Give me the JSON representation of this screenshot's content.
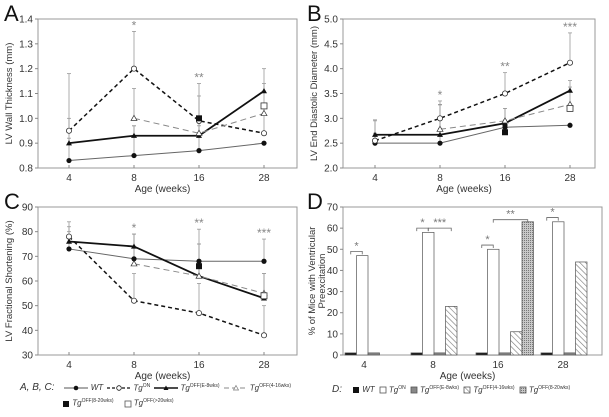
{
  "legend_abc": {
    "prefix": "A, B, C:",
    "items": [
      "WT",
      "Tg",
      "Tg",
      "Tg",
      "Tg",
      "Tg"
    ],
    "sups": [
      "",
      "ON",
      "OFF(E-8wks)",
      "OFF(4-16wks)",
      "OFF(8-20wks)",
      "OFF(>20wks)"
    ]
  },
  "legend_d": {
    "prefix": "D:",
    "items": [
      "WT",
      "Tg",
      "Tg",
      "Tg",
      "Tg"
    ],
    "sups": [
      "",
      "ON",
      "OFF(E-8wks)",
      "OFF(4-16wks)",
      "OFF(8-20wks)"
    ]
  },
  "chart_data": [
    {
      "panel": "A",
      "type": "line",
      "xlabel": "Age (weeks)",
      "ylabel": "LV Wall Thickness (mm)",
      "categories": [
        "4",
        "8",
        "16",
        "28"
      ],
      "ylim": [
        0.8,
        1.4
      ],
      "yticks": [
        "0.8",
        "0.9",
        "1.0",
        "1.1",
        "1.2",
        "1.3",
        "1.4"
      ],
      "series": [
        {
          "name": "WT",
          "values": [
            0.83,
            0.85,
            0.87,
            0.9
          ],
          "err": [
            0.09,
            0.12,
            0.1,
            0
          ]
        },
        {
          "name": "TgON",
          "values": [
            0.95,
            1.2,
            0.99,
            0.94
          ],
          "err": [
            0.23,
            0.15,
            0.15,
            0.1
          ]
        },
        {
          "name": "TgOFF(E-8wks)",
          "values": [
            0.9,
            0.93,
            0.93,
            1.11
          ],
          "err": [
            0.1,
            0.04,
            0.05,
            0.09
          ]
        },
        {
          "name": "TgOFF(4-16wks)",
          "values": [
            null,
            1.0,
            0.94,
            1.02
          ],
          "err": [
            null,
            0.12,
            0.15,
            0.12
          ]
        },
        {
          "name": "TgOFF(8-20wks)",
          "values": [
            null,
            null,
            1.0,
            null
          ],
          "err": [
            null,
            null,
            0,
            null
          ]
        },
        {
          "name": "TgOFF(>20wks)",
          "values": [
            null,
            null,
            null,
            1.05
          ],
          "err": [
            null,
            null,
            null,
            0
          ]
        }
      ],
      "significance": [
        {
          "x": "8",
          "label": "*"
        },
        {
          "x": "16",
          "label": "**"
        }
      ]
    },
    {
      "panel": "B",
      "type": "line",
      "xlabel": "Age (weeks)",
      "ylabel": "LV End Diastolic Diameter (mm)",
      "categories": [
        "4",
        "8",
        "16",
        "28"
      ],
      "ylim": [
        2.0,
        5.0
      ],
      "yticks": [
        "2.0",
        "2.5",
        "3.0",
        "3.5",
        "4.0",
        "4.5",
        "5.0"
      ],
      "series": [
        {
          "name": "WT",
          "values": [
            2.5,
            2.5,
            2.82,
            2.86
          ],
          "err": [
            0.2,
            0.3,
            0.15,
            0
          ]
        },
        {
          "name": "TgON",
          "values": [
            2.55,
            3.0,
            3.5,
            4.12
          ],
          "err": [
            0.4,
            0.35,
            0.42,
            0.6
          ]
        },
        {
          "name": "TgOFF(E-8wks)",
          "values": [
            2.67,
            2.67,
            2.9,
            3.56
          ],
          "err": [
            0.3,
            0.6,
            0.3,
            0.2
          ]
        },
        {
          "name": "TgOFF(4-16wks)",
          "values": [
            null,
            2.78,
            2.95,
            3.28
          ],
          "err": [
            null,
            0.5,
            0.25,
            0.35
          ]
        },
        {
          "name": "TgOFF(8-20wks)",
          "values": [
            null,
            null,
            2.72,
            null
          ],
          "err": [
            null,
            null,
            0,
            null
          ]
        },
        {
          "name": "TgOFF(>20wks)",
          "values": [
            null,
            null,
            null,
            3.2
          ],
          "err": [
            null,
            null,
            null,
            0
          ]
        }
      ],
      "significance": [
        {
          "x": "8",
          "label": "*"
        },
        {
          "x": "16",
          "label": "**"
        },
        {
          "x": "28",
          "label": "***"
        }
      ]
    },
    {
      "panel": "C",
      "type": "line",
      "xlabel": "Age (weeks)",
      "ylabel": "LV Fractional Shortening (%)",
      "categories": [
        "4",
        "8",
        "16",
        "28"
      ],
      "ylim": [
        30,
        90
      ],
      "yticks": [
        "30",
        "40",
        "50",
        "60",
        "70",
        "80",
        "90"
      ],
      "series": [
        {
          "name": "WT",
          "values": [
            73,
            69,
            68,
            68
          ],
          "err": [
            11,
            10,
            13,
            9
          ]
        },
        {
          "name": "TgON",
          "values": [
            78,
            52,
            47,
            38
          ],
          "err": [
            4,
            11,
            12,
            12
          ]
        },
        {
          "name": "TgOFF(E-8wks)",
          "values": [
            76,
            74,
            62,
            53
          ],
          "err": [
            4,
            5,
            13,
            10
          ]
        },
        {
          "name": "TgOFF(4-16wks)",
          "values": [
            null,
            67,
            62,
            55
          ],
          "err": [
            null,
            12,
            13,
            8
          ]
        },
        {
          "name": "TgOFF(8-20wks)",
          "values": [
            null,
            null,
            66,
            null
          ],
          "err": [
            null,
            null,
            0,
            null
          ]
        },
        {
          "name": "TgOFF(>20wks)",
          "values": [
            null,
            null,
            null,
            54
          ],
          "err": [
            null,
            null,
            null,
            0
          ]
        }
      ],
      "significance": [
        {
          "x": "8",
          "label": "*"
        },
        {
          "x": "16",
          "label": "**"
        },
        {
          "x": "28",
          "label": "***"
        }
      ]
    },
    {
      "panel": "D",
      "type": "bar",
      "xlabel": "Age (weeks)",
      "ylabel": "% of Mice with Ventricular Preexcitation",
      "categories": [
        "4",
        "8",
        "16",
        "28"
      ],
      "ylim": [
        0,
        70
      ],
      "yticks": [
        "0",
        "10",
        "20",
        "30",
        "40",
        "50",
        "60",
        "70"
      ],
      "series": [
        {
          "name": "WT",
          "values": [
            1,
            1,
            1,
            1
          ]
        },
        {
          "name": "TgON",
          "values": [
            47,
            58,
            50,
            63
          ]
        },
        {
          "name": "TgOFF(E-8wks)",
          "values": [
            1,
            1,
            1,
            1
          ]
        },
        {
          "name": "TgOFF(4-16wks)",
          "values": [
            null,
            23,
            11,
            44
          ]
        },
        {
          "name": "TgOFF(8-20wks)",
          "values": [
            null,
            null,
            63,
            null
          ]
        }
      ],
      "significance": [
        {
          "x": "4",
          "from": "WT",
          "to": "TgON",
          "y": 49,
          "label": "*"
        },
        {
          "x": "8",
          "from": "WT",
          "to": "TgON",
          "y": 60,
          "label": "*"
        },
        {
          "x": "8",
          "from": "TgON",
          "to": "TgOFF(4-16wks)",
          "y": 60,
          "label": "***"
        },
        {
          "x": "16",
          "from": "WT",
          "to": "TgON",
          "y": 52,
          "label": "*"
        },
        {
          "x": "16",
          "from": "TgON",
          "to": "TgOFF(8-20wks)",
          "y": 64,
          "label": "**"
        },
        {
          "x": "28",
          "from": "WT",
          "to": "TgON",
          "y": 65,
          "label": "*"
        }
      ]
    }
  ]
}
